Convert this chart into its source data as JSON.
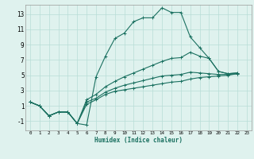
{
  "title": "",
  "xlabel": "Humidex (Indice chaleur)",
  "bg_color": "#dff2ee",
  "grid_color": "#b8ddd6",
  "line_color": "#1a7060",
  "xlim": [
    -0.5,
    23.5
  ],
  "ylim": [
    -2.2,
    14.2
  ],
  "xticks": [
    0,
    1,
    2,
    3,
    4,
    5,
    6,
    7,
    8,
    9,
    10,
    11,
    12,
    13,
    14,
    15,
    16,
    17,
    18,
    19,
    20,
    21,
    22,
    23
  ],
  "yticks": [
    -1,
    1,
    3,
    5,
    7,
    9,
    11,
    13
  ],
  "x_vals": [
    0,
    1,
    2,
    3,
    4,
    5,
    6,
    7,
    8,
    9,
    10,
    11,
    12,
    13,
    14,
    15,
    16,
    17,
    18,
    19,
    20,
    21,
    22,
    23
  ],
  "series1": [
    1.5,
    1.0,
    -0.3,
    0.2,
    0.2,
    -1.3,
    -1.5,
    4.8,
    7.5,
    9.8,
    10.5,
    12.0,
    12.5,
    12.5,
    13.8,
    13.2,
    13.2,
    10.0,
    8.6,
    7.2,
    5.5,
    5.2,
    5.3,
    null
  ],
  "series2": [
    1.5,
    1.0,
    -0.3,
    0.2,
    0.2,
    -1.3,
    1.8,
    2.5,
    3.5,
    4.2,
    4.8,
    5.3,
    5.8,
    6.3,
    6.8,
    7.2,
    7.3,
    8.0,
    7.5,
    7.2,
    5.5,
    5.2,
    5.3,
    null
  ],
  "series3": [
    1.5,
    1.0,
    -0.3,
    0.2,
    0.2,
    -1.3,
    1.5,
    2.0,
    2.8,
    3.3,
    3.7,
    4.0,
    4.3,
    4.6,
    4.9,
    5.0,
    5.1,
    5.4,
    5.3,
    5.2,
    5.1,
    5.1,
    5.2,
    null
  ],
  "series4": [
    1.5,
    1.0,
    -0.3,
    0.2,
    0.2,
    -1.3,
    1.2,
    1.8,
    2.5,
    2.9,
    3.1,
    3.3,
    3.5,
    3.7,
    3.9,
    4.1,
    4.2,
    4.5,
    4.7,
    4.8,
    4.9,
    5.0,
    5.2,
    null
  ]
}
